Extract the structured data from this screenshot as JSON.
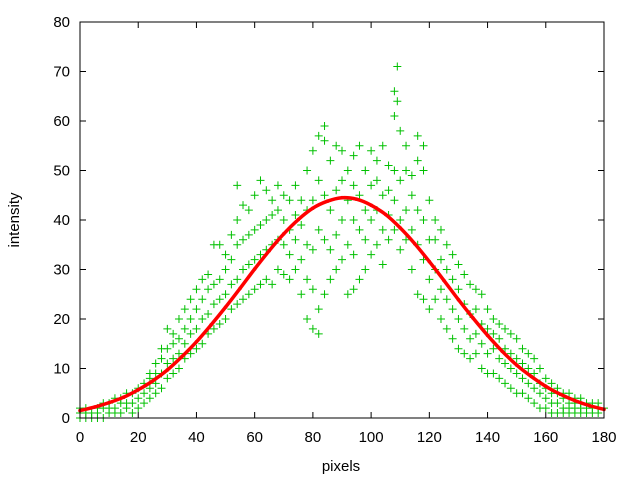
{
  "chart_data": {
    "type": "scatter",
    "title": "",
    "xlabel": "pixels",
    "ylabel": "intensity",
    "xlim": [
      0,
      180
    ],
    "ylim": [
      0,
      80
    ],
    "xticks": [
      "0",
      "20",
      "40",
      "60",
      "80",
      "100",
      "120",
      "140",
      "160",
      "180"
    ],
    "yticks": [
      "0",
      "10",
      "20",
      "30",
      "40",
      "50",
      "60",
      "70",
      "80"
    ],
    "grid": false,
    "legend": "none",
    "colors": {
      "scatter": "#00c000",
      "fit": "#ff0000"
    },
    "series": [
      {
        "type": "scatter",
        "marker": "plus",
        "points_grouped_by_x": [
          [
            0,
            [
              0,
              1,
              2
            ]
          ],
          [
            2,
            [
              0,
              1,
              2
            ]
          ],
          [
            4,
            [
              0,
              1
            ]
          ],
          [
            6,
            [
              0,
              1,
              2
            ]
          ],
          [
            8,
            [
              0,
              2,
              3
            ]
          ],
          [
            10,
            [
              1,
              2,
              3
            ]
          ],
          [
            12,
            [
              1,
              2,
              4
            ]
          ],
          [
            14,
            [
              1,
              3,
              4
            ]
          ],
          [
            16,
            [
              2,
              3,
              5
            ]
          ],
          [
            18,
            [
              1,
              3,
              5
            ]
          ],
          [
            20,
            [
              2,
              4,
              6
            ]
          ],
          [
            22,
            [
              3,
              5,
              7
            ]
          ],
          [
            24,
            [
              4,
              6,
              8,
              9
            ]
          ],
          [
            26,
            [
              5,
              7,
              9,
              11
            ]
          ],
          [
            28,
            [
              6,
              9,
              12,
              14
            ]
          ],
          [
            30,
            [
              8,
              11,
              14,
              18
            ]
          ],
          [
            32,
            [
              9,
              12,
              15,
              17
            ]
          ],
          [
            34,
            [
              10,
              13,
              16,
              20
            ]
          ],
          [
            36,
            [
              12,
              15,
              18,
              22
            ]
          ],
          [
            38,
            [
              13,
              17,
              20,
              24
            ]
          ],
          [
            40,
            [
              14,
              18,
              22,
              26
            ]
          ],
          [
            42,
            [
              15,
              20,
              24,
              28
            ]
          ],
          [
            44,
            [
              17,
              21,
              26,
              29
            ]
          ],
          [
            46,
            [
              18,
              23,
              27,
              35
            ]
          ],
          [
            48,
            [
              19,
              24,
              28,
              35
            ]
          ],
          [
            50,
            [
              20,
              25,
              30,
              33
            ]
          ],
          [
            52,
            [
              22,
              27,
              32,
              37
            ]
          ],
          [
            54,
            [
              23,
              28,
              35,
              40,
              47
            ]
          ],
          [
            56,
            [
              24,
              30,
              36,
              43
            ]
          ],
          [
            58,
            [
              25,
              31,
              37,
              42
            ]
          ],
          [
            60,
            [
              26,
              32,
              38,
              45
            ]
          ],
          [
            62,
            [
              27,
              33,
              39,
              48
            ]
          ],
          [
            64,
            [
              28,
              34,
              40,
              46
            ]
          ],
          [
            66,
            [
              27,
              35,
              41,
              44
            ]
          ],
          [
            68,
            [
              30,
              36,
              42,
              47
            ]
          ],
          [
            70,
            [
              29,
              35,
              40,
              45
            ]
          ],
          [
            72,
            [
              28,
              33,
              38,
              44
            ]
          ],
          [
            74,
            [
              30,
              36,
              41,
              47
            ]
          ],
          [
            76,
            [
              25,
              32,
              39,
              44
            ]
          ],
          [
            78,
            [
              20,
              28,
              35,
              42,
              50
            ]
          ],
          [
            80,
            [
              18,
              26,
              34,
              44,
              54
            ]
          ],
          [
            82,
            [
              17,
              22,
              38,
              48,
              57
            ]
          ],
          [
            84,
            [
              25,
              36,
              45,
              56,
              59
            ]
          ],
          [
            86,
            [
              28,
              34,
              42,
              52
            ]
          ],
          [
            88,
            [
              30,
              37,
              46,
              55
            ]
          ],
          [
            90,
            [
              32,
              40,
              48,
              54
            ]
          ],
          [
            92,
            [
              25,
              35,
              44,
              50
            ]
          ],
          [
            94,
            [
              26,
              33,
              40,
              47,
              53
            ]
          ],
          [
            96,
            [
              28,
              38,
              45,
              55
            ]
          ],
          [
            98,
            [
              30,
              36,
              42,
              50
            ]
          ],
          [
            100,
            [
              33,
              40,
              47,
              54
            ]
          ],
          [
            102,
            [
              35,
              42,
              48,
              52
            ]
          ],
          [
            104,
            [
              31,
              38,
              45,
              55
            ]
          ],
          [
            106,
            [
              36,
              41,
              46,
              51
            ]
          ],
          [
            108,
            [
              38,
              44,
              50,
              61,
              66
            ]
          ],
          [
            109,
            [
              71,
              64
            ]
          ],
          [
            110,
            [
              34,
              40,
              48,
              58
            ]
          ],
          [
            112,
            [
              36,
              42,
              50,
              55
            ]
          ],
          [
            114,
            [
              30,
              38,
              45,
              49
            ]
          ],
          [
            116,
            [
              25,
              35,
              42,
              52,
              57
            ]
          ],
          [
            118,
            [
              24,
              32,
              40,
              50,
              55
            ]
          ],
          [
            120,
            [
              22,
              28,
              36,
              44
            ]
          ],
          [
            122,
            [
              24,
              30,
              36,
              40
            ]
          ],
          [
            124,
            [
              20,
              26,
              32,
              38
            ]
          ],
          [
            126,
            [
              18,
              24,
              30,
              35
            ]
          ],
          [
            128,
            [
              16,
              22,
              28,
              33
            ]
          ],
          [
            130,
            [
              14,
              20,
              26,
              31
            ]
          ],
          [
            132,
            [
              13,
              18,
              23,
              29
            ]
          ],
          [
            134,
            [
              12,
              16,
              21,
              27
            ]
          ],
          [
            136,
            [
              13,
              17,
              22,
              26
            ]
          ],
          [
            138,
            [
              10,
              15,
              19,
              25
            ]
          ],
          [
            140,
            [
              9,
              13,
              18,
              22
            ]
          ],
          [
            142,
            [
              9,
              14,
              17,
              20
            ]
          ],
          [
            144,
            [
              8,
              12,
              16,
              19
            ]
          ],
          [
            146,
            [
              7,
              11,
              14,
              18
            ]
          ],
          [
            148,
            [
              6,
              10,
              13,
              17
            ]
          ],
          [
            150,
            [
              5,
              9,
              12,
              16
            ]
          ],
          [
            152,
            [
              5,
              8,
              11,
              14
            ]
          ],
          [
            154,
            [
              4,
              7,
              10,
              13
            ]
          ],
          [
            156,
            [
              3,
              6,
              9,
              12
            ]
          ],
          [
            158,
            [
              2,
              5,
              7,
              10
            ]
          ],
          [
            160,
            [
              2,
              4,
              6,
              8
            ]
          ],
          [
            162,
            [
              1,
              3,
              5,
              7
            ]
          ],
          [
            164,
            [
              1,
              3,
              5,
              6
            ]
          ],
          [
            166,
            [
              1,
              2,
              4,
              5
            ]
          ],
          [
            168,
            [
              1,
              2,
              3,
              5
            ]
          ],
          [
            170,
            [
              1,
              2,
              3,
              4
            ]
          ],
          [
            172,
            [
              1,
              2,
              3,
              4
            ]
          ],
          [
            174,
            [
              1,
              2,
              3
            ]
          ],
          [
            176,
            [
              1,
              2,
              3
            ]
          ],
          [
            178,
            [
              1,
              2,
              3
            ]
          ],
          [
            180,
            [
              2
            ]
          ]
        ]
      },
      {
        "type": "line",
        "x": [
          0,
          5,
          10,
          15,
          20,
          25,
          30,
          35,
          40,
          45,
          50,
          55,
          60,
          65,
          70,
          75,
          80,
          85,
          90,
          95,
          100,
          105,
          110,
          115,
          120,
          125,
          130,
          135,
          140,
          145,
          150,
          155,
          160,
          165,
          170,
          175,
          180
        ],
        "y": [
          1.5,
          2.2,
          3.1,
          4.2,
          5.7,
          7.5,
          9.7,
          12.4,
          15.4,
          18.8,
          22.4,
          26.2,
          30.1,
          33.8,
          37.2,
          40.1,
          42.4,
          43.8,
          44.5,
          44.2,
          43.0,
          41.1,
          38.4,
          35.2,
          31.6,
          27.8,
          23.9,
          20.2,
          16.7,
          13.5,
          10.7,
          8.4,
          6.4,
          4.8,
          3.5,
          2.5,
          1.75
        ]
      }
    ]
  }
}
